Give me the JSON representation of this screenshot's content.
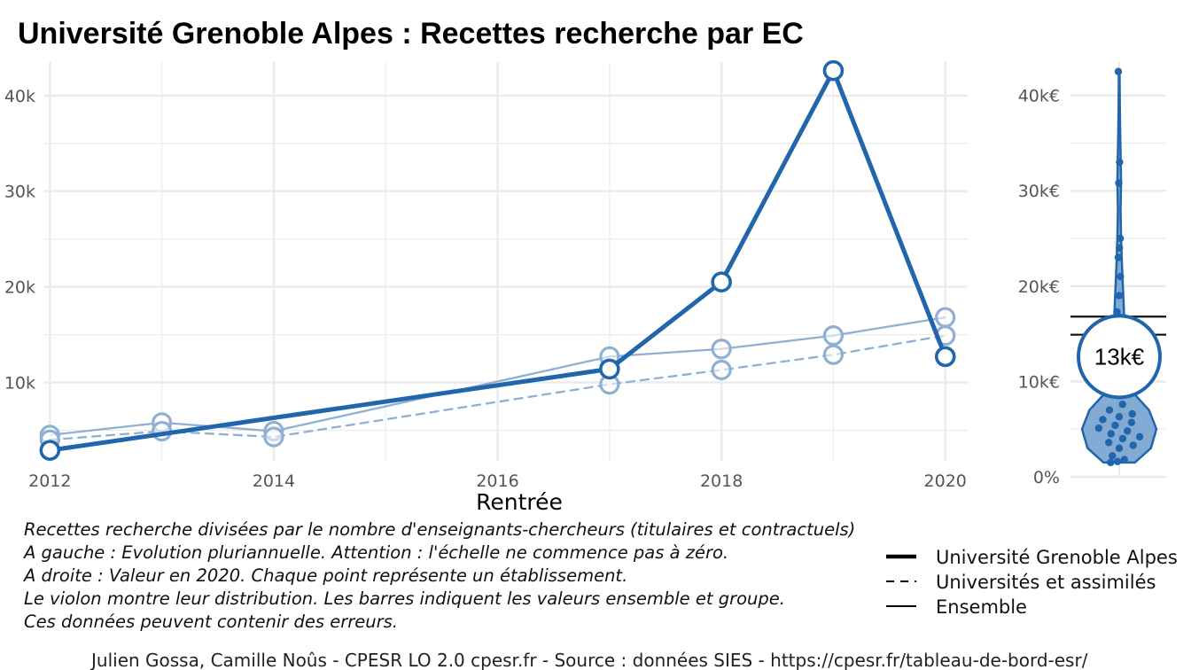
{
  "title": "Université Grenoble Alpes  :  Recettes recherche par EC",
  "colors": {
    "main": "#2166ac",
    "light": "#8fb0d3",
    "grid": "#ebebeb",
    "violin_fill": "#6f9ccc"
  },
  "chart_data": [
    {
      "type": "line",
      "xlabel": "Rentrée",
      "ylabel": "",
      "xlim": [
        2011.95,
        2020.2
      ],
      "ylim": [
        1800,
        43500
      ],
      "x_ticks": [
        2012,
        2014,
        2016,
        2018,
        2020
      ],
      "x_tick_labels": [
        "2012",
        "2014",
        "2016",
        "2018",
        "2020"
      ],
      "y_ticks": [
        10000,
        20000,
        30000,
        40000
      ],
      "y_tick_labels": [
        "10k",
        "20k",
        "30k",
        "40k"
      ],
      "grid": true,
      "series": [
        {
          "name": "Université Grenoble Alpes",
          "style": "solid-thick",
          "points": [
            [
              2012,
              2900
            ],
            [
              2017,
              11400
            ],
            [
              2018,
              20500
            ],
            [
              2019,
              42600
            ],
            [
              2020,
              12700
            ]
          ]
        },
        {
          "name": "Universités et assimilés",
          "style": "dashed",
          "points": [
            [
              2012,
              4000
            ],
            [
              2013,
              4900
            ],
            [
              2014,
              4300
            ],
            [
              2017,
              9800
            ],
            [
              2018,
              11300
            ],
            [
              2019,
              12900
            ],
            [
              2020,
              14900
            ]
          ]
        },
        {
          "name": "Ensemble",
          "style": "solid-thin",
          "points": [
            [
              2012,
              4500
            ],
            [
              2013,
              5800
            ],
            [
              2014,
              4900
            ],
            [
              2017,
              12700
            ],
            [
              2018,
              13500
            ],
            [
              2019,
              14900
            ],
            [
              2020,
              16800
            ]
          ]
        }
      ]
    },
    {
      "type": "violin",
      "year": 2020,
      "ylim": [
        0,
        43500
      ],
      "y_ticks": [
        0,
        10000,
        20000,
        30000,
        40000
      ],
      "y_tick_labels": [
        "0%",
        "10k€",
        "20k€",
        "30k€",
        "40k€"
      ],
      "grid": true,
      "highlight_value": 12700,
      "highlight_label": "13k€",
      "reference_lines": [
        {
          "name": "Ensemble",
          "value": 16800
        },
        {
          "name": "Universités et assimilés",
          "value": 14900
        }
      ],
      "points": [
        1500,
        1600,
        1800,
        2200,
        3000,
        3300,
        3600,
        4000,
        4200,
        4500,
        4800,
        5100,
        5400,
        5700,
        6000,
        6300,
        6600,
        7000,
        7600,
        9000,
        10500,
        12000,
        13500,
        15200,
        16700,
        17300,
        19000,
        21000,
        23000,
        24000,
        25000,
        30800,
        33000,
        42500
      ],
      "density": [
        [
          1500,
          0.42
        ],
        [
          3000,
          0.85
        ],
        [
          5000,
          1.0
        ],
        [
          7000,
          0.8
        ],
        [
          8500,
          0.45
        ],
        [
          10500,
          0.17
        ],
        [
          13000,
          0.12
        ],
        [
          16000,
          0.14
        ],
        [
          19000,
          0.11
        ],
        [
          22000,
          0.075
        ],
        [
          25000,
          0.05
        ],
        [
          28000,
          0.035
        ],
        [
          31000,
          0.05
        ],
        [
          34000,
          0.035
        ],
        [
          38000,
          0.02
        ],
        [
          42500,
          0.01
        ]
      ]
    }
  ],
  "caption_lines": [
    "Recettes recherche divisées par le nombre d'enseignants-chercheurs (titulaires et contractuels)",
    "A gauche : Evolution pluriannuelle. Attention : l'échelle ne commence pas à zéro.",
    "A droite : Valeur en 2020. Chaque point représente un établissement.",
    "Le violon montre leur distribution. Les barres indiquent les valeurs ensemble et groupe.",
    "Ces données peuvent contenir des erreurs."
  ],
  "legend": [
    {
      "label": "Université Grenoble Alpes",
      "style": "solid-thick"
    },
    {
      "label": "Universités et assimilés",
      "style": "dashed"
    },
    {
      "label": "Ensemble",
      "style": "solid-thin"
    }
  ],
  "footer": "Julien Gossa, Camille Noûs - CPESR LO 2.0 cpesr.fr - Source : données SIES - https://cpesr.fr/tableau-de-bord-esr/"
}
